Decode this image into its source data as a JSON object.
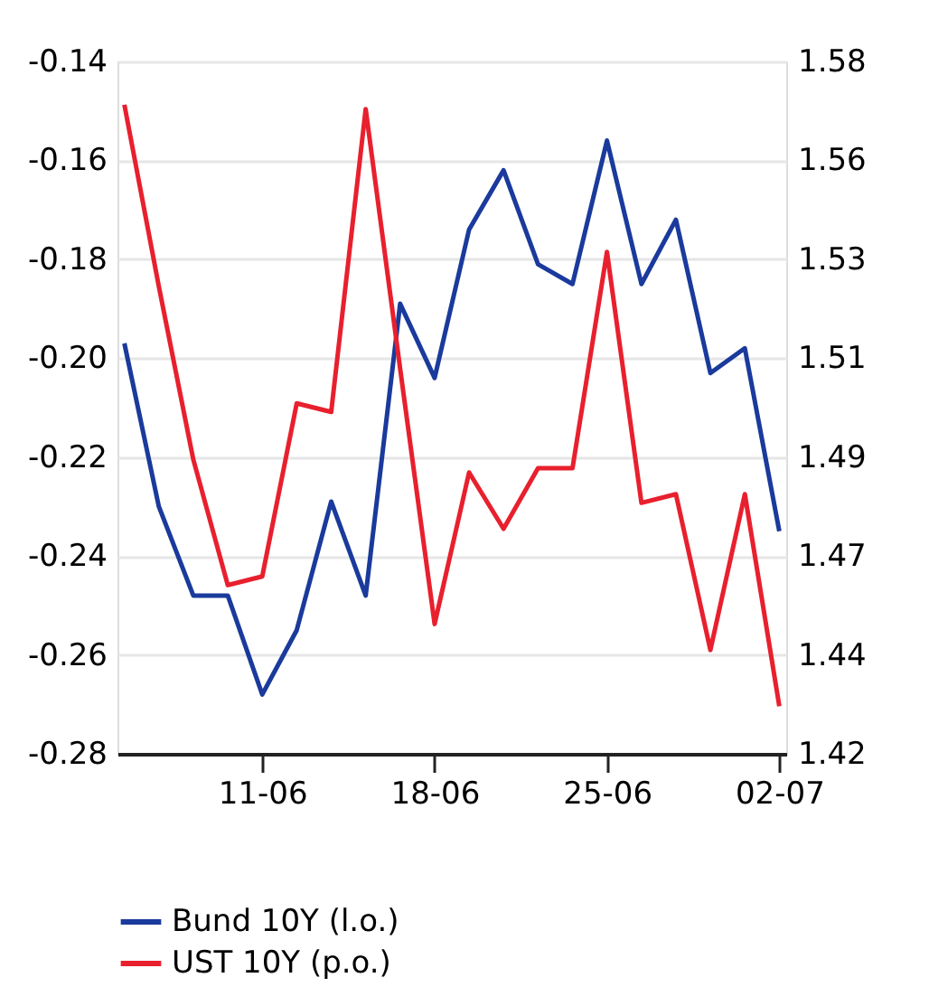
{
  "chart_data": {
    "type": "line",
    "categories": [
      null,
      null,
      null,
      null,
      "11-06",
      null,
      null,
      null,
      null,
      "18-06",
      null,
      null,
      null,
      null,
      "25-06",
      null,
      null,
      null,
      null,
      "02-07"
    ],
    "series": [
      {
        "name": "Bund 10Y (l.o.)",
        "color": "#1a3a9c",
        "values": [
          -0.197,
          -0.23,
          -0.248,
          -0.248,
          -0.268,
          -0.255,
          -0.229,
          -0.248,
          -0.189,
          -0.204,
          -0.174,
          -0.162,
          -0.181,
          -0.185,
          -0.156,
          -0.185,
          -0.172,
          -0.203,
          -0.198,
          -0.235
        ]
      },
      {
        "name": "UST 10Y (p.o.)",
        "color": "#e8202e",
        "axis": "y2",
        "values": [
          1.57,
          1.528,
          1.488,
          1.459,
          1.461,
          1.501,
          1.499,
          1.569,
          1.509,
          1.45,
          1.485,
          1.472,
          1.486,
          1.486,
          1.536,
          1.478,
          1.48,
          1.444,
          1.48,
          1.431
        ]
      }
    ],
    "ylim": [
      -0.28,
      -0.14
    ],
    "yticks": [
      {
        "value": -0.28,
        "label": "-0.28"
      },
      {
        "value": -0.26,
        "label": "-0.26"
      },
      {
        "value": -0.24,
        "label": "-0.24"
      },
      {
        "value": -0.22,
        "label": "-0.22"
      },
      {
        "value": -0.2,
        "label": "-0.20"
      },
      {
        "value": -0.18,
        "label": "-0.18"
      },
      {
        "value": -0.16,
        "label": "-0.16"
      },
      {
        "value": -0.14,
        "label": "-0.14"
      }
    ],
    "y2lim": [
      1.42,
      1.58
    ],
    "y2ticks": [
      {
        "value": 1.42,
        "label": "1.42"
      },
      {
        "value": 1.442857,
        "label": "1.44"
      },
      {
        "value": 1.465714,
        "label": "1.47"
      },
      {
        "value": 1.488571,
        "label": "1.49"
      },
      {
        "value": 1.511429,
        "label": "1.51"
      },
      {
        "value": 1.534286,
        "label": "1.53"
      },
      {
        "value": 1.557143,
        "label": "1.56"
      },
      {
        "value": 1.58,
        "label": "1.58"
      }
    ],
    "grid": "y",
    "legend": "bottom",
    "marker": "none",
    "line_style": "solid"
  }
}
